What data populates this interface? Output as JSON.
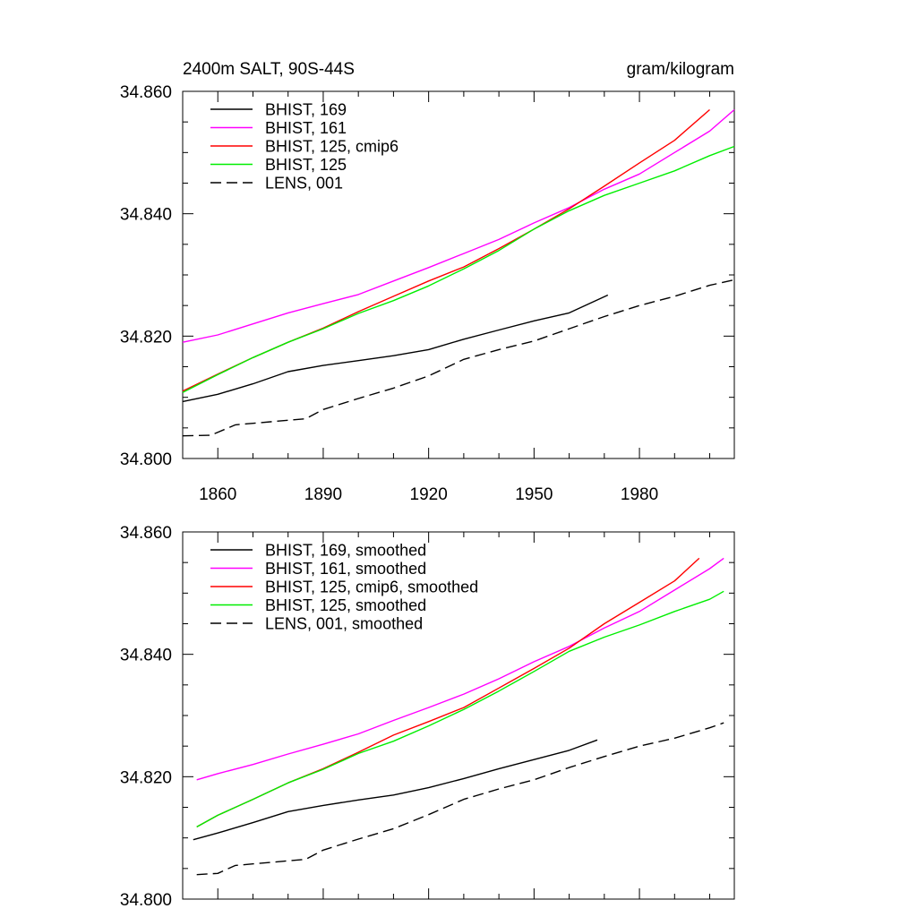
{
  "figure": {
    "title": "2400m SALT, 90S-44S",
    "units": "gram/kilogram"
  },
  "chart_data": [
    {
      "type": "line",
      "panel": "top",
      "title": "2400m SALT, 90S-44S",
      "units": "gram/kilogram",
      "xlabel": "",
      "ylabel": "",
      "xlim": [
        1850,
        2007
      ],
      "ylim": [
        34.8,
        34.86
      ],
      "x_ticks": [
        1860,
        1890,
        1920,
        1950,
        1980
      ],
      "x_tick_labels": [
        "1860",
        "1890",
        "1920",
        "1950",
        "1980"
      ],
      "y_ticks": [
        34.8,
        34.82,
        34.84,
        34.86
      ],
      "y_tick_labels": [
        "34.800",
        "34.820",
        "34.840",
        "34.860"
      ],
      "legend_position": "top-left",
      "series": [
        {
          "name": "BHIST, 169",
          "color": "#000000",
          "dash": "solid",
          "x": [
            1850,
            1860,
            1870,
            1880,
            1890,
            1900,
            1910,
            1920,
            1930,
            1940,
            1950,
            1960,
            1971
          ],
          "y": [
            34.8093,
            34.8105,
            34.8122,
            34.8142,
            34.8152,
            34.816,
            34.8168,
            34.8178,
            34.8195,
            34.821,
            34.8225,
            34.8238,
            34.8267
          ]
        },
        {
          "name": "BHIST, 161",
          "color": "#ff00ff",
          "dash": "solid",
          "x": [
            1850,
            1860,
            1870,
            1880,
            1890,
            1900,
            1910,
            1920,
            1930,
            1940,
            1950,
            1960,
            1970,
            1980,
            1990,
            2000,
            2007
          ],
          "y": [
            34.819,
            34.8202,
            34.822,
            34.8238,
            34.8253,
            34.8268,
            34.829,
            34.8312,
            34.8335,
            34.8358,
            34.8385,
            34.841,
            34.844,
            34.8465,
            34.85,
            34.8535,
            34.857
          ]
        },
        {
          "name": "BHIST, 125, cmip6",
          "color": "#ff0000",
          "dash": "solid",
          "x": [
            1850,
            1860,
            1870,
            1880,
            1890,
            1900,
            1910,
            1920,
            1930,
            1940,
            1950,
            1960,
            1970,
            1980,
            1990,
            2000
          ],
          "y": [
            34.811,
            34.8138,
            34.8165,
            34.819,
            34.8213,
            34.824,
            34.8265,
            34.829,
            34.8313,
            34.8343,
            34.8375,
            34.8408,
            34.8445,
            34.8483,
            34.852,
            34.857
          ]
        },
        {
          "name": "BHIST, 125",
          "color": "#00ee00",
          "dash": "solid",
          "x": [
            1850,
            1860,
            1870,
            1880,
            1890,
            1900,
            1910,
            1920,
            1930,
            1940,
            1950,
            1960,
            1970,
            1980,
            1990,
            2000,
            2007
          ],
          "y": [
            34.8108,
            34.8137,
            34.8165,
            34.819,
            34.8212,
            34.8237,
            34.8258,
            34.8282,
            34.831,
            34.834,
            34.8375,
            34.8405,
            34.843,
            34.845,
            34.847,
            34.8495,
            34.851
          ]
        },
        {
          "name": "LENS, 001",
          "color": "#000000",
          "dash": "dashed",
          "x": [
            1850,
            1858,
            1865,
            1875,
            1885,
            1890,
            1900,
            1910,
            1920,
            1930,
            1940,
            1950,
            1960,
            1970,
            1980,
            1990,
            2000,
            2007
          ],
          "y": [
            34.8037,
            34.8038,
            34.8055,
            34.806,
            34.8065,
            34.808,
            34.8098,
            34.8115,
            34.8135,
            34.8162,
            34.8178,
            34.8192,
            34.8212,
            34.8232,
            34.825,
            34.8265,
            34.8283,
            34.8292
          ]
        }
      ]
    },
    {
      "type": "line",
      "panel": "bottom",
      "title": "",
      "xlabel": "",
      "ylabel": "",
      "xlim": [
        1850,
        2007
      ],
      "ylim": [
        34.8,
        34.86
      ],
      "x_ticks": [
        1860,
        1890,
        1920,
        1950,
        1980
      ],
      "x_tick_labels": [],
      "y_ticks": [
        34.8,
        34.82,
        34.84,
        34.86
      ],
      "y_tick_labels": [
        "34.800",
        "34.820",
        "34.840",
        "34.860"
      ],
      "legend_position": "top-left",
      "series": [
        {
          "name": "BHIST, 169, smoothed",
          "color": "#000000",
          "dash": "solid",
          "x": [
            1853,
            1860,
            1870,
            1880,
            1890,
            1900,
            1910,
            1920,
            1930,
            1940,
            1950,
            1960,
            1968
          ],
          "y": [
            34.8097,
            34.8108,
            34.8125,
            34.8143,
            34.8153,
            34.8162,
            34.817,
            34.8182,
            34.8197,
            34.8213,
            34.8228,
            34.8243,
            34.826
          ]
        },
        {
          "name": "BHIST, 161, smoothed",
          "color": "#ff00ff",
          "dash": "solid",
          "x": [
            1854,
            1860,
            1870,
            1880,
            1890,
            1900,
            1910,
            1920,
            1930,
            1940,
            1950,
            1960,
            1970,
            1980,
            1990,
            2000,
            2004
          ],
          "y": [
            34.8195,
            34.8205,
            34.822,
            34.8237,
            34.8253,
            34.827,
            34.8292,
            34.8313,
            34.8335,
            34.836,
            34.8388,
            34.8413,
            34.8443,
            34.847,
            34.8505,
            34.854,
            34.8557
          ]
        },
        {
          "name": "BHIST, 125, cmip6, smoothed",
          "color": "#ff0000",
          "dash": "solid",
          "x": [
            1854,
            1860,
            1870,
            1880,
            1890,
            1900,
            1910,
            1920,
            1930,
            1940,
            1950,
            1960,
            1970,
            1980,
            1990,
            1997
          ],
          "y": [
            34.8118,
            34.8137,
            34.8163,
            34.819,
            34.8213,
            34.824,
            34.8268,
            34.829,
            34.8313,
            34.8345,
            34.8377,
            34.841,
            34.845,
            34.8485,
            34.852,
            34.8557
          ]
        },
        {
          "name": "BHIST, 125, smoothed",
          "color": "#00ee00",
          "dash": "solid",
          "x": [
            1854,
            1860,
            1870,
            1880,
            1890,
            1900,
            1910,
            1920,
            1930,
            1940,
            1950,
            1960,
            1970,
            1980,
            1990,
            2000,
            2004
          ],
          "y": [
            34.8118,
            34.8137,
            34.8163,
            34.819,
            34.8212,
            34.8238,
            34.8258,
            34.8283,
            34.831,
            34.834,
            34.8372,
            34.8405,
            34.8428,
            34.8448,
            34.847,
            34.849,
            34.8503
          ]
        },
        {
          "name": "LENS, 001, smoothed",
          "color": "#000000",
          "dash": "dashed",
          "x": [
            1854,
            1860,
            1865,
            1875,
            1885,
            1890,
            1900,
            1910,
            1920,
            1930,
            1940,
            1950,
            1960,
            1970,
            1980,
            1990,
            2000,
            2004
          ],
          "y": [
            34.804,
            34.8042,
            34.8055,
            34.806,
            34.8065,
            34.808,
            34.8098,
            34.8115,
            34.8138,
            34.8163,
            34.818,
            34.8195,
            34.8215,
            34.8233,
            34.825,
            34.8263,
            34.828,
            34.8288
          ]
        }
      ]
    }
  ]
}
